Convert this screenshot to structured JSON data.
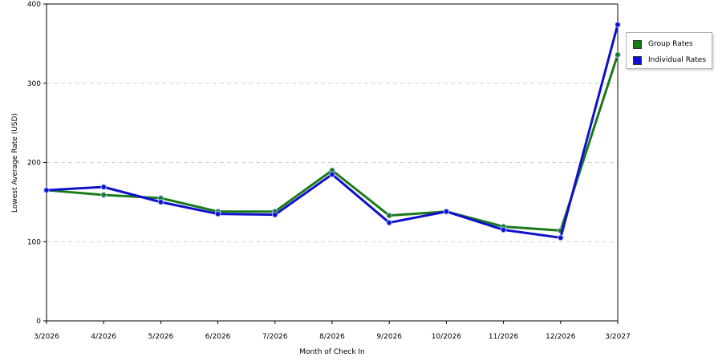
{
  "chart_data": {
    "type": "line",
    "xlabel": "Month of Check In",
    "ylabel": "Lowest Average Rate (USD)",
    "categories": [
      "3/2026",
      "4/2026",
      "5/2026",
      "6/2026",
      "7/2026",
      "8/2026",
      "9/2026",
      "10/2026",
      "11/2026",
      "12/2026",
      "3/2027"
    ],
    "ylim": [
      0,
      400
    ],
    "yticks": [
      0,
      100,
      200,
      300,
      400
    ],
    "grid": "horizontal dashed",
    "legend_position": "right",
    "series": [
      {
        "name": "Group Rates",
        "color": "#1a7a1a",
        "values": [
          165,
          159,
          155,
          138,
          138,
          190,
          133,
          138,
          119,
          114,
          336
        ]
      },
      {
        "name": "Individual Rates",
        "color": "#1010cc",
        "values": [
          165,
          169,
          150,
          135,
          134,
          185,
          124,
          138,
          115,
          105,
          374
        ]
      }
    ]
  }
}
